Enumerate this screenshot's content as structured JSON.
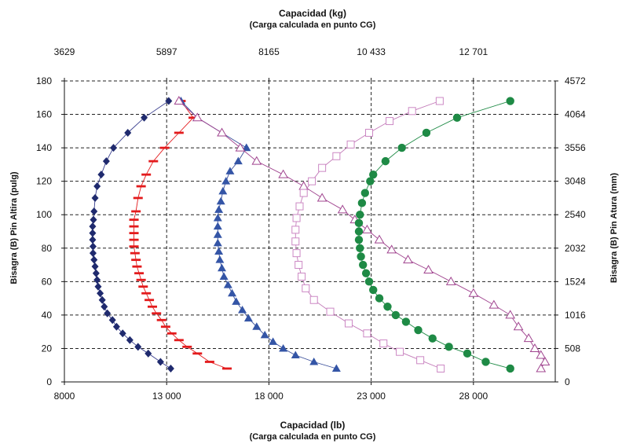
{
  "chart_data": {
    "type": "scatter",
    "top_title": "Capacidad (kg)",
    "top_subtitle": "(Carga calculada en punto CG)",
    "bottom_title": "Capacidad (lb)",
    "bottom_subtitle": "(Carga calculada en punto CG)",
    "ylabel_left": "Bisagra (B) Pin Altira (pulg)",
    "ylabel_right": "Bisagra (B) Pin Atura (mm)",
    "xlim": [
      8000,
      32000
    ],
    "ylim": [
      0,
      180
    ],
    "grid": true,
    "grid_style": "dashed",
    "x_ticks": [
      {
        "value": 8000,
        "label": "8000"
      },
      {
        "value": 13000,
        "label": "13 000"
      },
      {
        "value": 18000,
        "label": "18 000"
      },
      {
        "value": 23000,
        "label": "23 000"
      },
      {
        "value": 28000,
        "label": "28 000"
      }
    ],
    "x_top_ticks": [
      {
        "value": 8000,
        "label": "3629"
      },
      {
        "value": 13000,
        "label": "5897"
      },
      {
        "value": 18000,
        "label": "8165"
      },
      {
        "value": 23000,
        "label": "10 433"
      },
      {
        "value": 28000,
        "label": "12 701"
      }
    ],
    "y_ticks": [
      {
        "value": 0,
        "label": "0"
      },
      {
        "value": 20,
        "label": "20"
      },
      {
        "value": 40,
        "label": "40"
      },
      {
        "value": 60,
        "label": "60"
      },
      {
        "value": 80,
        "label": "80"
      },
      {
        "value": 100,
        "label": "100"
      },
      {
        "value": 120,
        "label": "120"
      },
      {
        "value": 140,
        "label": "140"
      },
      {
        "value": 160,
        "label": "160"
      },
      {
        "value": 180,
        "label": "180"
      }
    ],
    "y_right_ticks": [
      {
        "value": 0,
        "label": "0"
      },
      {
        "value": 20,
        "label": "508"
      },
      {
        "value": 40,
        "label": "1016"
      },
      {
        "value": 60,
        "label": "1524"
      },
      {
        "value": 80,
        "label": "2032"
      },
      {
        "value": 100,
        "label": "2540"
      },
      {
        "value": 120,
        "label": "3048"
      },
      {
        "value": 140,
        "label": "3556"
      },
      {
        "value": 160,
        "label": "4064"
      },
      {
        "value": 180,
        "label": "4572"
      }
    ],
    "series": [
      {
        "marker": "diamond",
        "color": "#1f2a6e",
        "line_color": "#3a3f8f",
        "filled": true,
        "points": [
          [
            13200,
            8
          ],
          [
            12700,
            12
          ],
          [
            12100,
            17
          ],
          [
            11600,
            21
          ],
          [
            11200,
            25
          ],
          [
            10850,
            29
          ],
          [
            10550,
            33
          ],
          [
            10350,
            37
          ],
          [
            10100,
            41
          ],
          [
            9950,
            45
          ],
          [
            9850,
            49
          ],
          [
            9750,
            53
          ],
          [
            9650,
            57
          ],
          [
            9600,
            61
          ],
          [
            9550,
            65
          ],
          [
            9500,
            69
          ],
          [
            9450,
            73
          ],
          [
            9400,
            77
          ],
          [
            9400,
            81
          ],
          [
            9380,
            85
          ],
          [
            9380,
            89
          ],
          [
            9380,
            93
          ],
          [
            9420,
            97
          ],
          [
            9450,
            102
          ],
          [
            9500,
            110
          ],
          [
            9600,
            117
          ],
          [
            9800,
            124
          ],
          [
            10050,
            132
          ],
          [
            10400,
            140
          ],
          [
            11100,
            149
          ],
          [
            11900,
            158
          ],
          [
            13100,
            168
          ]
        ]
      },
      {
        "marker": "dash",
        "color": "#e31a1c",
        "line_color": "#e31a1c",
        "filled": true,
        "points": [
          [
            15950,
            8
          ],
          [
            15100,
            12
          ],
          [
            14500,
            17
          ],
          [
            14000,
            21
          ],
          [
            13600,
            25
          ],
          [
            13250,
            29
          ],
          [
            12950,
            33
          ],
          [
            12750,
            37
          ],
          [
            12500,
            41
          ],
          [
            12300,
            45
          ],
          [
            12150,
            49
          ],
          [
            12000,
            53
          ],
          [
            11850,
            57
          ],
          [
            11750,
            61
          ],
          [
            11650,
            65
          ],
          [
            11550,
            69
          ],
          [
            11500,
            73
          ],
          [
            11450,
            77
          ],
          [
            11400,
            81
          ],
          [
            11400,
            85
          ],
          [
            11400,
            89
          ],
          [
            11400,
            93
          ],
          [
            11400,
            97
          ],
          [
            11500,
            102
          ],
          [
            11600,
            110
          ],
          [
            11750,
            117
          ],
          [
            12000,
            124
          ],
          [
            12350,
            132
          ],
          [
            12900,
            140
          ],
          [
            13600,
            149
          ],
          [
            14300,
            158
          ],
          [
            13700,
            168
          ]
        ]
      },
      {
        "marker": "triangle",
        "color": "#3455a6",
        "line_color": "#3a4f9a",
        "filled": true,
        "points": [
          [
            21300,
            8
          ],
          [
            20200,
            12
          ],
          [
            19300,
            16
          ],
          [
            18700,
            20
          ],
          [
            18200,
            24
          ],
          [
            17800,
            28
          ],
          [
            17400,
            33
          ],
          [
            17000,
            38
          ],
          [
            16700,
            43
          ],
          [
            16400,
            48
          ],
          [
            16200,
            53
          ],
          [
            16000,
            58
          ],
          [
            15800,
            63
          ],
          [
            15700,
            68
          ],
          [
            15600,
            73
          ],
          [
            15550,
            78
          ],
          [
            15500,
            83
          ],
          [
            15500,
            88
          ],
          [
            15500,
            93
          ],
          [
            15500,
            98
          ],
          [
            15550,
            103
          ],
          [
            15650,
            108
          ],
          [
            15750,
            114
          ],
          [
            15900,
            120
          ],
          [
            16100,
            126
          ],
          [
            16500,
            132
          ],
          [
            16900,
            140
          ],
          [
            16900,
            140
          ],
          [
            15700,
            149
          ],
          [
            14500,
            158
          ],
          [
            13700,
            168
          ]
        ]
      },
      {
        "marker": "triangle-open",
        "color": "#a0448f",
        "line_color": "#a0448f",
        "filled": false,
        "points": [
          [
            31300,
            8
          ],
          [
            31500,
            12
          ],
          [
            31300,
            16
          ],
          [
            31000,
            20
          ],
          [
            30700,
            26
          ],
          [
            30200,
            33
          ],
          [
            29800,
            40
          ],
          [
            29000,
            46
          ],
          [
            28000,
            53
          ],
          [
            26900,
            60
          ],
          [
            25800,
            67
          ],
          [
            24800,
            73
          ],
          [
            24000,
            79
          ],
          [
            23400,
            85
          ],
          [
            22800,
            91
          ],
          [
            22200,
            97
          ],
          [
            21600,
            103
          ],
          [
            20600,
            110
          ],
          [
            19700,
            117
          ],
          [
            18700,
            124
          ],
          [
            17400,
            132
          ],
          [
            16600,
            140
          ],
          [
            15700,
            149
          ],
          [
            14500,
            158
          ],
          [
            13600,
            168
          ]
        ]
      },
      {
        "marker": "square-open",
        "color": "#cc88c4",
        "line_color": "#c27ab8",
        "filled": false,
        "points": [
          [
            26400,
            8
          ],
          [
            25400,
            13
          ],
          [
            24400,
            18
          ],
          [
            23600,
            23
          ],
          [
            22800,
            29
          ],
          [
            21900,
            35
          ],
          [
            21000,
            42
          ],
          [
            20200,
            49
          ],
          [
            19800,
            56
          ],
          [
            19600,
            63
          ],
          [
            19450,
            70
          ],
          [
            19350,
            77
          ],
          [
            19300,
            84
          ],
          [
            19300,
            91
          ],
          [
            19350,
            98
          ],
          [
            19500,
            105
          ],
          [
            19700,
            113
          ],
          [
            20100,
            120
          ],
          [
            20600,
            128
          ],
          [
            21300,
            135
          ],
          [
            22000,
            142
          ],
          [
            22900,
            149
          ],
          [
            23900,
            156
          ],
          [
            25000,
            162
          ],
          [
            26350,
            168
          ]
        ]
      },
      {
        "marker": "circle",
        "color": "#1e8a45",
        "line_color": "#1e8a45",
        "filled": true,
        "points": [
          [
            29800,
            8
          ],
          [
            28600,
            12
          ],
          [
            27700,
            17
          ],
          [
            26800,
            21
          ],
          [
            26000,
            26
          ],
          [
            25300,
            31
          ],
          [
            24700,
            36
          ],
          [
            24200,
            40
          ],
          [
            23800,
            45
          ],
          [
            23400,
            50
          ],
          [
            23100,
            55
          ],
          [
            22900,
            60
          ],
          [
            22750,
            65
          ],
          [
            22600,
            70
          ],
          [
            22500,
            75
          ],
          [
            22450,
            80
          ],
          [
            22400,
            85
          ],
          [
            22400,
            90
          ],
          [
            22400,
            95
          ],
          [
            22450,
            100
          ],
          [
            22550,
            107
          ],
          [
            22700,
            113
          ],
          [
            22950,
            120
          ],
          [
            23100,
            124
          ],
          [
            23700,
            132
          ],
          [
            24500,
            140
          ],
          [
            25700,
            149
          ],
          [
            27200,
            158
          ],
          [
            29800,
            168
          ]
        ]
      }
    ]
  }
}
